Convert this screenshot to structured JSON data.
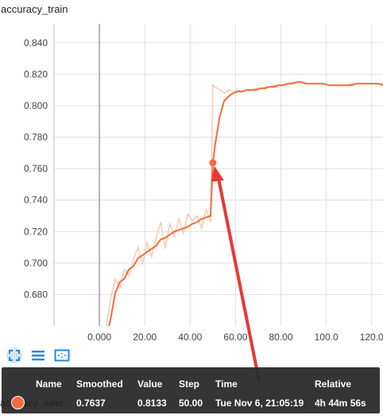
{
  "chart_data": {
    "type": "line",
    "title": "accuracy_train",
    "xlabel": "",
    "ylabel": "",
    "xlim": [
      -20,
      125
    ],
    "ylim": [
      0.66,
      0.852
    ],
    "y_ticks": [
      "0.680",
      "0.700",
      "0.720",
      "0.740",
      "0.760",
      "0.780",
      "0.800",
      "0.820",
      "0.840"
    ],
    "y_tick_values": [
      0.68,
      0.7,
      0.72,
      0.74,
      0.76,
      0.78,
      0.8,
      0.82,
      0.84
    ],
    "x_ticks": [
      "0.000",
      "20.00",
      "40.00",
      "60.00",
      "80.00",
      "100.0",
      "120.0"
    ],
    "x_tick_values": [
      0,
      20,
      40,
      60,
      80,
      100,
      120
    ],
    "grid": true,
    "colors": {
      "smoothed": "#f36c3a",
      "raw": "#f8c9b6"
    },
    "series": [
      {
        "values_x": [
          3,
          5,
          7,
          9,
          11,
          13,
          15,
          17,
          19,
          21,
          23,
          25,
          27,
          29,
          31,
          33,
          35,
          37,
          39,
          41,
          43,
          45,
          47,
          49,
          50,
          51,
          53,
          55,
          57,
          59,
          61,
          63,
          65,
          67,
          69,
          71,
          73,
          75,
          77,
          79,
          81,
          83,
          85,
          87,
          89,
          91,
          93,
          95,
          97,
          99,
          101,
          103,
          105,
          107,
          109,
          111,
          113,
          115,
          117,
          119,
          121,
          123,
          125
        ],
        "values": [
          0.652,
          0.665,
          0.681,
          0.688,
          0.69,
          0.696,
          0.698,
          0.703,
          0.705,
          0.707,
          0.709,
          0.711,
          0.715,
          0.716,
          0.718,
          0.72,
          0.721,
          0.722,
          0.723,
          0.725,
          0.726,
          0.728,
          0.729,
          0.73,
          0.7637,
          0.775,
          0.793,
          0.803,
          0.806,
          0.808,
          0.809,
          0.809,
          0.81,
          0.81,
          0.81,
          0.811,
          0.811,
          0.812,
          0.812,
          0.813,
          0.813,
          0.814,
          0.814,
          0.815,
          0.815,
          0.814,
          0.814,
          0.814,
          0.814,
          0.814,
          0.813,
          0.813,
          0.813,
          0.813,
          0.813,
          0.813,
          0.814,
          0.814,
          0.814,
          0.814,
          0.814,
          0.814,
          0.813
        ]
      },
      {
        "values_x": [
          3,
          5,
          7,
          9,
          11,
          13,
          15,
          17,
          19,
          21,
          23,
          25,
          27,
          29,
          31,
          33,
          35,
          37,
          39,
          41,
          43,
          45,
          47,
          49,
          50,
          51,
          53,
          55,
          57,
          59,
          61,
          63,
          65,
          67,
          69,
          71,
          73,
          75,
          77,
          79,
          81,
          83,
          85,
          87,
          89,
          91,
          93,
          95,
          97,
          99,
          101,
          103,
          105,
          107,
          109,
          111,
          113,
          115,
          117,
          119,
          121,
          123,
          125
        ],
        "values": [
          0.66,
          0.678,
          0.69,
          0.684,
          0.696,
          0.692,
          0.702,
          0.71,
          0.699,
          0.713,
          0.704,
          0.716,
          0.726,
          0.709,
          0.725,
          0.717,
          0.728,
          0.719,
          0.731,
          0.727,
          0.73,
          0.722,
          0.734,
          0.726,
          0.8133,
          0.812,
          0.81,
          0.808,
          0.81,
          0.809,
          0.81,
          0.809,
          0.81,
          0.81,
          0.811,
          0.811,
          0.812,
          0.812,
          0.813,
          0.813,
          0.813,
          0.814,
          0.815,
          0.815,
          0.815,
          0.814,
          0.814,
          0.814,
          0.814,
          0.814,
          0.813,
          0.813,
          0.813,
          0.813,
          0.813,
          0.814,
          0.814,
          0.814,
          0.814,
          0.814,
          0.814,
          0.814,
          0.814
        ]
      }
    ],
    "highlight_point": {
      "x": 50,
      "y": 0.7637
    }
  },
  "toolbar": {
    "icons": [
      "expand-icon",
      "list-icon",
      "fit-domain-icon"
    ]
  },
  "tooltip": {
    "headers": {
      "name": "Name",
      "smoothed": "Smoothed",
      "value": "Value",
      "step": "Step",
      "time": "Time",
      "relative": "Relative"
    },
    "row": {
      "name": "accuracy_valid",
      "smoothed": "0.7637",
      "value": "0.8133",
      "step": "50.00",
      "time": "Tue Nov 6, 21:05:19",
      "relative": "4h 44m 56s"
    }
  }
}
